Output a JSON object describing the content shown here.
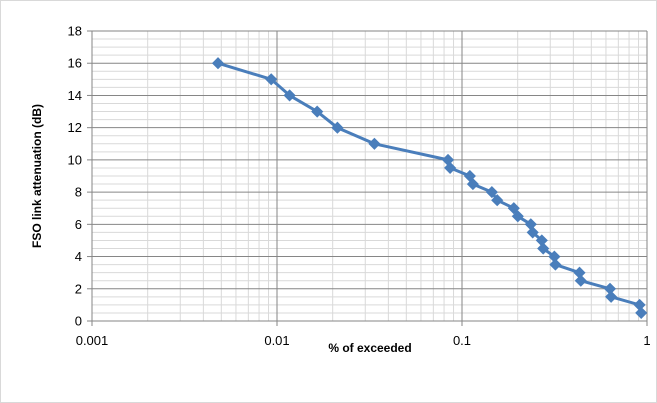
{
  "chart_data": {
    "type": "scatter",
    "title": "",
    "xlabel": "% of exceeded",
    "ylabel": "FSO link  attenuation (dB)",
    "x_scale": "log",
    "xlim": [
      0.001,
      1
    ],
    "ylim": [
      0,
      18
    ],
    "x_ticks": [
      "0.001",
      "0.01",
      "0.1",
      "1"
    ],
    "y_ticks": [
      "0",
      "2",
      "4",
      "6",
      "8",
      "10",
      "12",
      "14",
      "16",
      "18"
    ],
    "y_tick_values": [
      0,
      2,
      4,
      6,
      8,
      10,
      12,
      14,
      16,
      18
    ],
    "grid": true,
    "legend": "none",
    "series": [
      {
        "color": "#4a7ebb",
        "marker": "diamond",
        "x": [
          0.0048,
          0.0093,
          0.0117,
          0.0165,
          0.0212,
          0.0336,
          0.084,
          0.0862,
          0.1103,
          0.1146,
          0.1451,
          0.1549,
          0.1906,
          0.2002,
          0.2354,
          0.2411,
          0.2701,
          0.2748,
          0.3159,
          0.3196,
          0.4315,
          0.4389,
          0.6311,
          0.6394,
          0.9121,
          0.9306
        ],
        "y": [
          16,
          15,
          14,
          13,
          12,
          11,
          10,
          9.5,
          9,
          8.5,
          8,
          7.5,
          7,
          6.5,
          6,
          5.5,
          5,
          4.5,
          4,
          3.5,
          3,
          2.5,
          2,
          1.5,
          1,
          0.5
        ]
      }
    ]
  }
}
